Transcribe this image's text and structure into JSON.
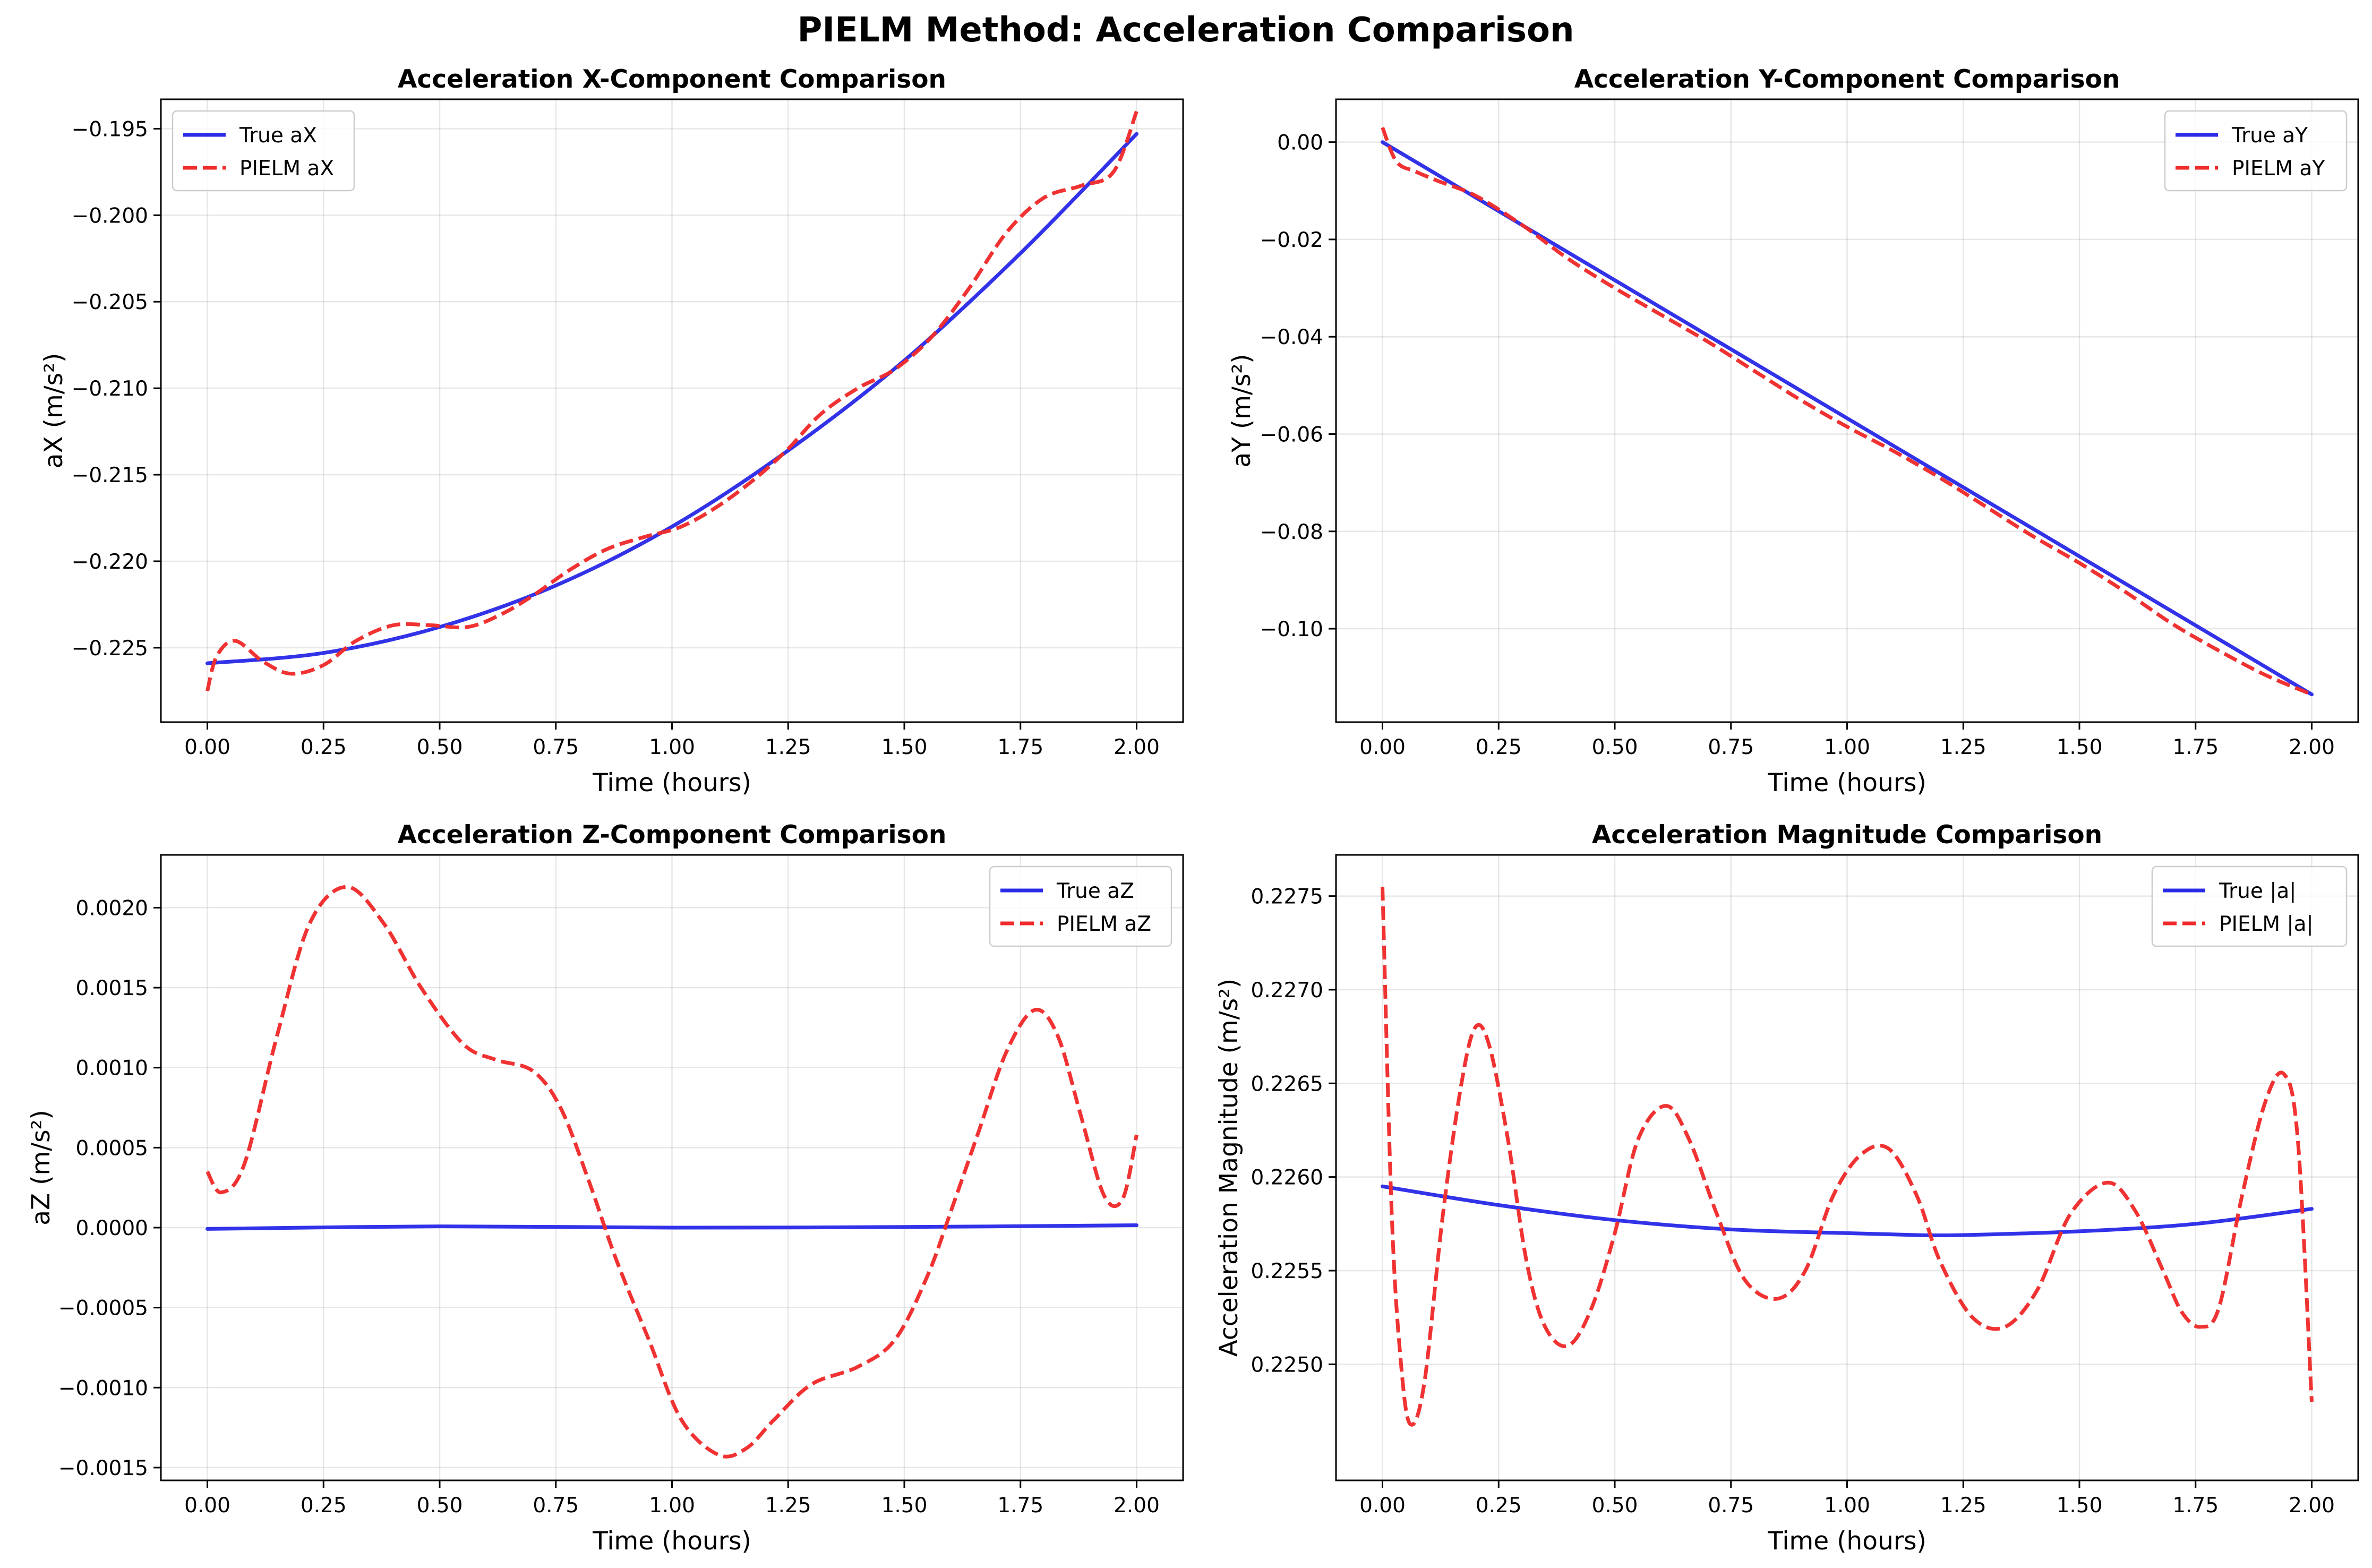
{
  "figure_title": "PIELM Method: Acceleration Comparison",
  "colors": {
    "true": "#2b2be8",
    "pielm": "#f02b2b"
  },
  "chart_data": [
    {
      "type": "line",
      "title": "Acceleration X-Component Comparison",
      "xlabel": "Time (hours)",
      "ylabel": "aX (m/s²)",
      "xlim": [
        -0.1,
        2.1
      ],
      "ylim": [
        -0.2293,
        -0.1933
      ],
      "xticks": [
        0.0,
        0.25,
        0.5,
        0.75,
        1.0,
        1.25,
        1.5,
        1.75,
        2.0
      ],
      "xtick_labels": [
        "0.00",
        "0.25",
        "0.50",
        "0.75",
        "1.00",
        "1.25",
        "1.50",
        "1.75",
        "2.00"
      ],
      "yticks": [
        -0.225,
        -0.22,
        -0.215,
        -0.21,
        -0.205,
        -0.2,
        -0.195
      ],
      "ytick_labels": [
        "−0.225",
        "−0.220",
        "−0.215",
        "−0.210",
        "−0.205",
        "−0.200",
        "−0.195"
      ],
      "legend_loc": "upper left",
      "series": [
        {
          "name": "True aX",
          "style": "solid",
          "color_key": "true",
          "x": [
            0,
            0.25,
            0.5,
            0.75,
            1.0,
            1.25,
            1.5,
            1.75,
            2.0
          ],
          "y": [
            -0.2259,
            -0.2253,
            -0.2238,
            -0.2214,
            -0.218,
            -0.2136,
            -0.2084,
            -0.2022,
            -0.1953
          ]
        },
        {
          "name": "PIELM aX",
          "style": "dashed",
          "color_key": "pielm",
          "x": [
            0,
            0.02,
            0.06,
            0.12,
            0.18,
            0.25,
            0.32,
            0.4,
            0.48,
            0.56,
            0.63,
            0.7,
            0.78,
            0.86,
            0.94,
            1.02,
            1.1,
            1.18,
            1.25,
            1.32,
            1.4,
            1.48,
            1.56,
            1.64,
            1.72,
            1.8,
            1.88,
            1.95,
            2.0
          ],
          "y": [
            -0.2275,
            -0.2255,
            -0.2246,
            -0.2258,
            -0.2265,
            -0.226,
            -0.2246,
            -0.2237,
            -0.2237,
            -0.2238,
            -0.2231,
            -0.222,
            -0.2205,
            -0.2193,
            -0.2186,
            -0.218,
            -0.2168,
            -0.2152,
            -0.2135,
            -0.2115,
            -0.21,
            -0.2089,
            -0.207,
            -0.2042,
            -0.201,
            -0.199,
            -0.1983,
            -0.1975,
            -0.194
          ]
        }
      ]
    },
    {
      "type": "line",
      "title": "Acceleration Y-Component Comparison",
      "xlabel": "Time (hours)",
      "ylabel": "aY (m/s²)",
      "xlim": [
        -0.1,
        2.1
      ],
      "ylim": [
        -0.1192,
        0.0088
      ],
      "xticks": [
        0.0,
        0.25,
        0.5,
        0.75,
        1.0,
        1.25,
        1.5,
        1.75,
        2.0
      ],
      "xtick_labels": [
        "0.00",
        "0.25",
        "0.50",
        "0.75",
        "1.00",
        "1.25",
        "1.50",
        "1.75",
        "2.00"
      ],
      "yticks": [
        0.0,
        -0.02,
        -0.04,
        -0.06,
        -0.08,
        -0.1
      ],
      "ytick_labels": [
        "0.00",
        "−0.02",
        "−0.04",
        "−0.06",
        "−0.08",
        "−0.10"
      ],
      "legend_loc": "upper right",
      "series": [
        {
          "name": "True aY",
          "style": "solid",
          "color_key": "true",
          "x": [
            0,
            2.0
          ],
          "y": [
            0.0,
            -0.1135
          ]
        },
        {
          "name": "PIELM aY",
          "style": "dashed",
          "color_key": "pielm",
          "x": [
            0,
            0.03,
            0.07,
            0.12,
            0.2,
            0.3,
            0.4,
            0.5,
            0.6,
            0.7,
            0.8,
            0.9,
            1.0,
            1.1,
            1.2,
            1.3,
            1.4,
            1.5,
            1.6,
            1.7,
            1.8,
            1.9,
            2.0
          ],
          "y": [
            0.003,
            -0.004,
            -0.006,
            -0.008,
            -0.011,
            -0.017,
            -0.024,
            -0.03,
            -0.0355,
            -0.041,
            -0.047,
            -0.053,
            -0.0585,
            -0.0635,
            -0.069,
            -0.075,
            -0.081,
            -0.0865,
            -0.0925,
            -0.099,
            -0.1045,
            -0.1095,
            -0.1135
          ]
        }
      ]
    },
    {
      "type": "line",
      "title": "Acceleration Z-Component Comparison",
      "xlabel": "Time (hours)",
      "ylabel": "aZ (m/s²)",
      "xlim": [
        -0.1,
        2.1
      ],
      "ylim": [
        -0.00158,
        0.00233
      ],
      "xticks": [
        0.0,
        0.25,
        0.5,
        0.75,
        1.0,
        1.25,
        1.5,
        1.75,
        2.0
      ],
      "xtick_labels": [
        "0.00",
        "0.25",
        "0.50",
        "0.75",
        "1.00",
        "1.25",
        "1.50",
        "1.75",
        "2.00"
      ],
      "yticks": [
        -0.0015,
        -0.001,
        -0.0005,
        0.0,
        0.0005,
        0.001,
        0.0015,
        0.002
      ],
      "ytick_labels": [
        "−0.0015",
        "−0.0010",
        "−0.0005",
        "0.0000",
        "0.0005",
        "0.0010",
        "0.0015",
        "0.0020"
      ],
      "legend_loc": "upper right",
      "series": [
        {
          "name": "True aZ",
          "style": "solid",
          "color_key": "true",
          "x": [
            0,
            0.5,
            1.0,
            1.5,
            2.0
          ],
          "y": [
            -8e-06,
            8e-06,
            0.0,
            4e-06,
            1.5e-05
          ]
        },
        {
          "name": "PIELM aZ",
          "style": "dashed",
          "color_key": "pielm",
          "x": [
            0,
            0.03,
            0.08,
            0.15,
            0.22,
            0.3,
            0.38,
            0.46,
            0.55,
            0.62,
            0.7,
            0.76,
            0.82,
            0.88,
            0.95,
            1.02,
            1.1,
            1.16,
            1.22,
            1.3,
            1.4,
            1.48,
            1.55,
            1.6,
            1.66,
            1.72,
            1.78,
            1.83,
            1.88,
            1.93,
            1.97,
            2.0
          ],
          "y": [
            0.00035,
            0.00022,
            0.0004,
            0.0012,
            0.0019,
            0.00213,
            0.0019,
            0.0015,
            0.00115,
            0.00105,
            0.00098,
            0.00075,
            0.0003,
            -0.0002,
            -0.0007,
            -0.0012,
            -0.00142,
            -0.00138,
            -0.0012,
            -0.00098,
            -0.00087,
            -0.0007,
            -0.0003,
            0.0001,
            0.0006,
            0.0011,
            0.00136,
            0.0012,
            0.0007,
            0.0002,
            0.00018,
            0.00058
          ]
        }
      ]
    },
    {
      "type": "line",
      "title": "Acceleration Magnitude Comparison",
      "xlabel": "Time (hours)",
      "ylabel": "Acceleration Magnitude (m/s²)",
      "xlim": [
        -0.1,
        2.1
      ],
      "ylim": [
        0.22438,
        0.22772
      ],
      "xticks": [
        0.0,
        0.25,
        0.5,
        0.75,
        1.0,
        1.25,
        1.5,
        1.75,
        2.0
      ],
      "xtick_labels": [
        "0.00",
        "0.25",
        "0.50",
        "0.75",
        "1.00",
        "1.25",
        "1.50",
        "1.75",
        "2.00"
      ],
      "yticks": [
        0.225,
        0.2255,
        0.226,
        0.2265,
        0.227,
        0.2275
      ],
      "ytick_labels": [
        "0.2250",
        "0.2255",
        "0.2260",
        "0.2265",
        "0.2270",
        "0.2275"
      ],
      "legend_loc": "upper right",
      "series": [
        {
          "name": "True |a|",
          "style": "solid",
          "color_key": "true",
          "x": [
            0,
            0.25,
            0.5,
            0.75,
            1.0,
            1.15,
            1.25,
            1.5,
            1.75,
            2.0
          ],
          "y": [
            0.22595,
            0.22585,
            0.22577,
            0.22572,
            0.2257,
            0.22569,
            0.22569,
            0.22571,
            0.22575,
            0.22583
          ]
        },
        {
          "name": "PIELM |a|",
          "style": "dashed",
          "color_key": "pielm",
          "x": [
            0,
            0.02,
            0.04,
            0.06,
            0.09,
            0.13,
            0.17,
            0.2,
            0.23,
            0.27,
            0.31,
            0.35,
            0.4,
            0.45,
            0.5,
            0.55,
            0.61,
            0.66,
            0.72,
            0.78,
            0.85,
            0.91,
            0.97,
            1.03,
            1.09,
            1.15,
            1.2,
            1.27,
            1.34,
            1.41,
            1.48,
            1.56,
            1.62,
            1.68,
            1.72,
            1.76,
            1.8,
            1.85,
            1.9,
            1.94,
            1.97,
            2.0
          ],
          "y": [
            0.22755,
            0.2258,
            0.225,
            0.22468,
            0.2249,
            0.2258,
            0.2265,
            0.2268,
            0.2267,
            0.2262,
            0.22555,
            0.2252,
            0.2251,
            0.2253,
            0.2257,
            0.2262,
            0.22638,
            0.2262,
            0.2258,
            0.22545,
            0.22535,
            0.2255,
            0.2259,
            0.22612,
            0.22615,
            0.2259,
            0.22555,
            0.22525,
            0.2252,
            0.2254,
            0.2258,
            0.22597,
            0.22582,
            0.2255,
            0.22528,
            0.2252,
            0.2253,
            0.2259,
            0.2264,
            0.22655,
            0.2262,
            0.2248
          ]
        }
      ]
    }
  ]
}
